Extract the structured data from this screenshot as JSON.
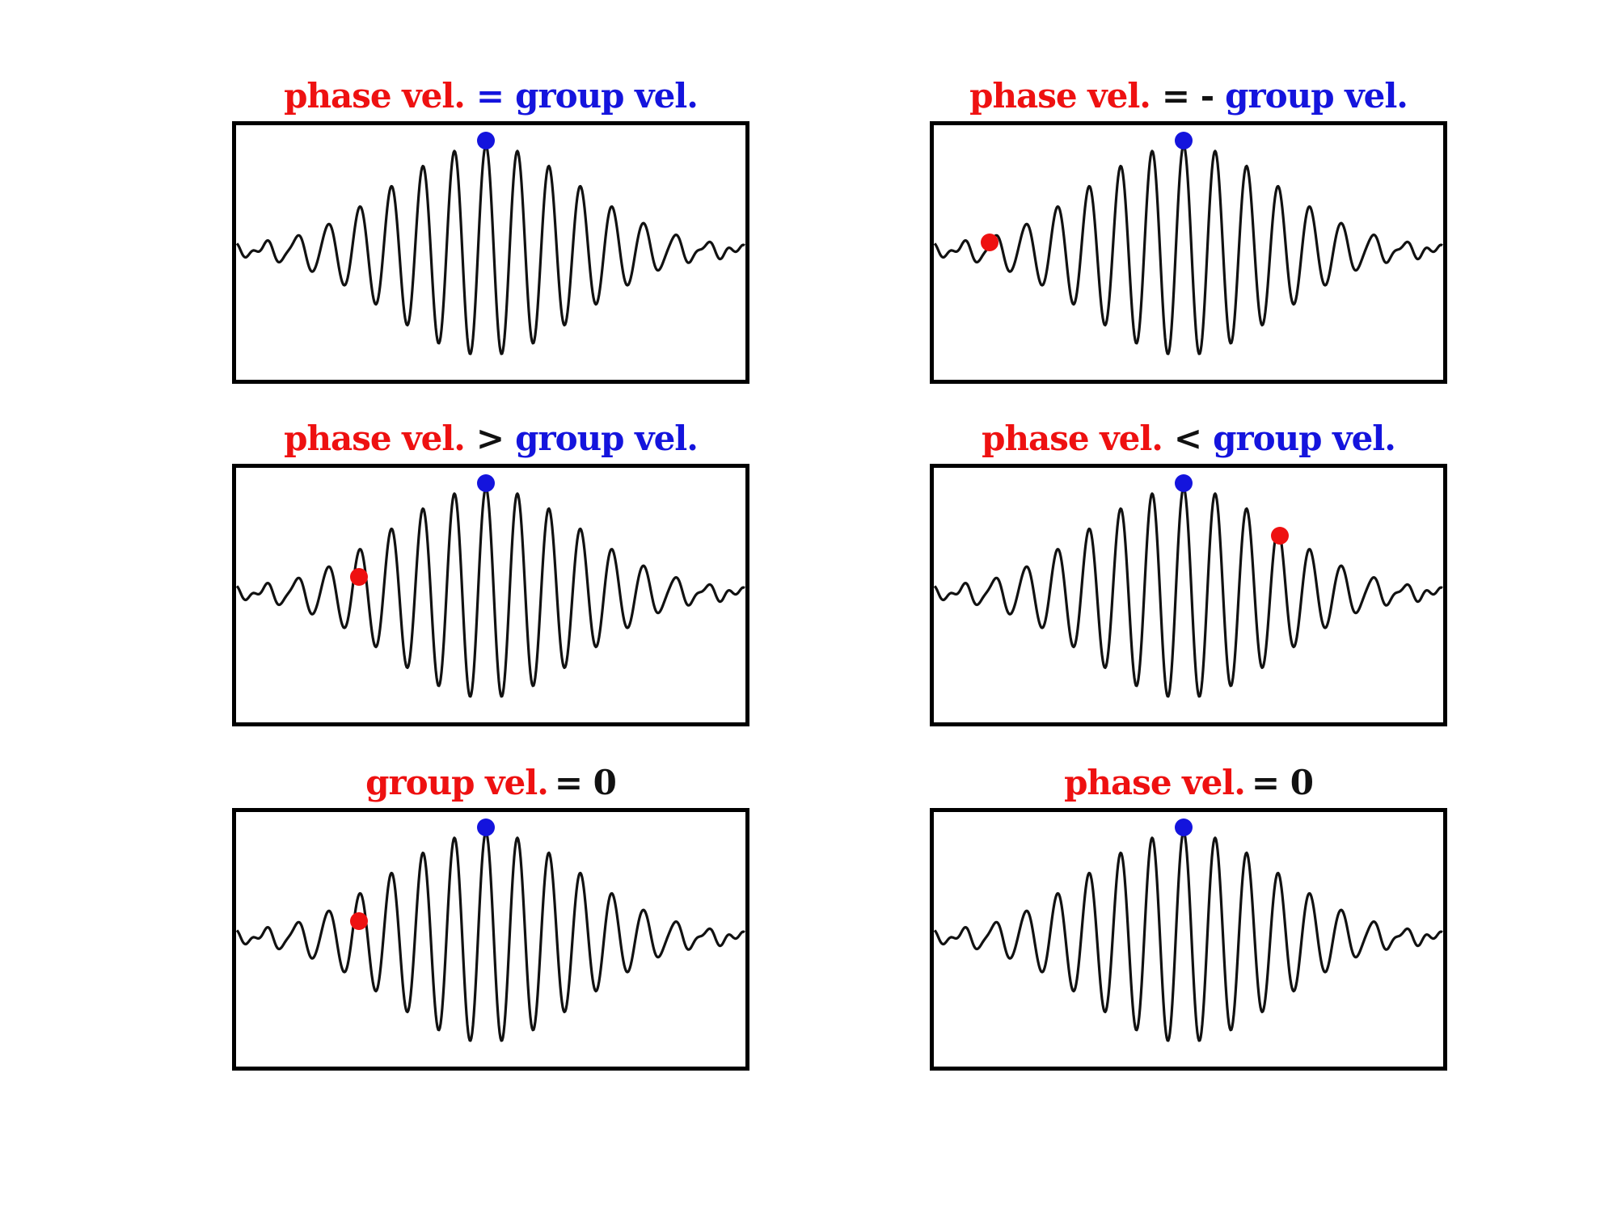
{
  "colors": {
    "red": "#ee1111",
    "blue": "#1414dd",
    "black": "#111111"
  },
  "panels": [
    {
      "parts": [
        {
          "text": "phase vel.",
          "color": "red"
        },
        {
          "text": "=",
          "color": "blue"
        },
        {
          "text": "group vel.",
          "color": "blue"
        }
      ],
      "dots": [
        {
          "color": "blue",
          "where": "envelope peak"
        }
      ]
    },
    {
      "parts": [
        {
          "text": "phase vel.",
          "color": "red"
        },
        {
          "text": "= -",
          "color": "black"
        },
        {
          "text": "group vel.",
          "color": "blue"
        }
      ],
      "dots": [
        {
          "color": "blue",
          "where": "envelope peak"
        },
        {
          "color": "red",
          "where": "far left tail"
        }
      ]
    },
    {
      "parts": [
        {
          "text": "phase vel.",
          "color": "red"
        },
        {
          "text": ">",
          "color": "black"
        },
        {
          "text": "group vel.",
          "color": "blue"
        }
      ],
      "dots": [
        {
          "color": "blue",
          "where": "envelope peak"
        },
        {
          "color": "red",
          "where": "left flank"
        }
      ]
    },
    {
      "parts": [
        {
          "text": "phase vel.",
          "color": "red"
        },
        {
          "text": "<",
          "color": "black"
        },
        {
          "text": "group vel.",
          "color": "blue"
        }
      ],
      "dots": [
        {
          "color": "blue",
          "where": "envelope peak"
        },
        {
          "color": "red",
          "where": "right flank"
        }
      ]
    },
    {
      "parts": [
        {
          "text": "group vel.",
          "color": "red"
        },
        {
          "text": "= 0",
          "color": "black"
        }
      ],
      "dots": [
        {
          "color": "blue",
          "where": "envelope peak"
        },
        {
          "color": "red",
          "where": "left flank"
        }
      ]
    },
    {
      "parts": [
        {
          "text": "phase vel.",
          "color": "red"
        },
        {
          "text": "= 0",
          "color": "black"
        }
      ],
      "dots": [
        {
          "color": "blue",
          "where": "envelope peak"
        }
      ]
    }
  ]
}
